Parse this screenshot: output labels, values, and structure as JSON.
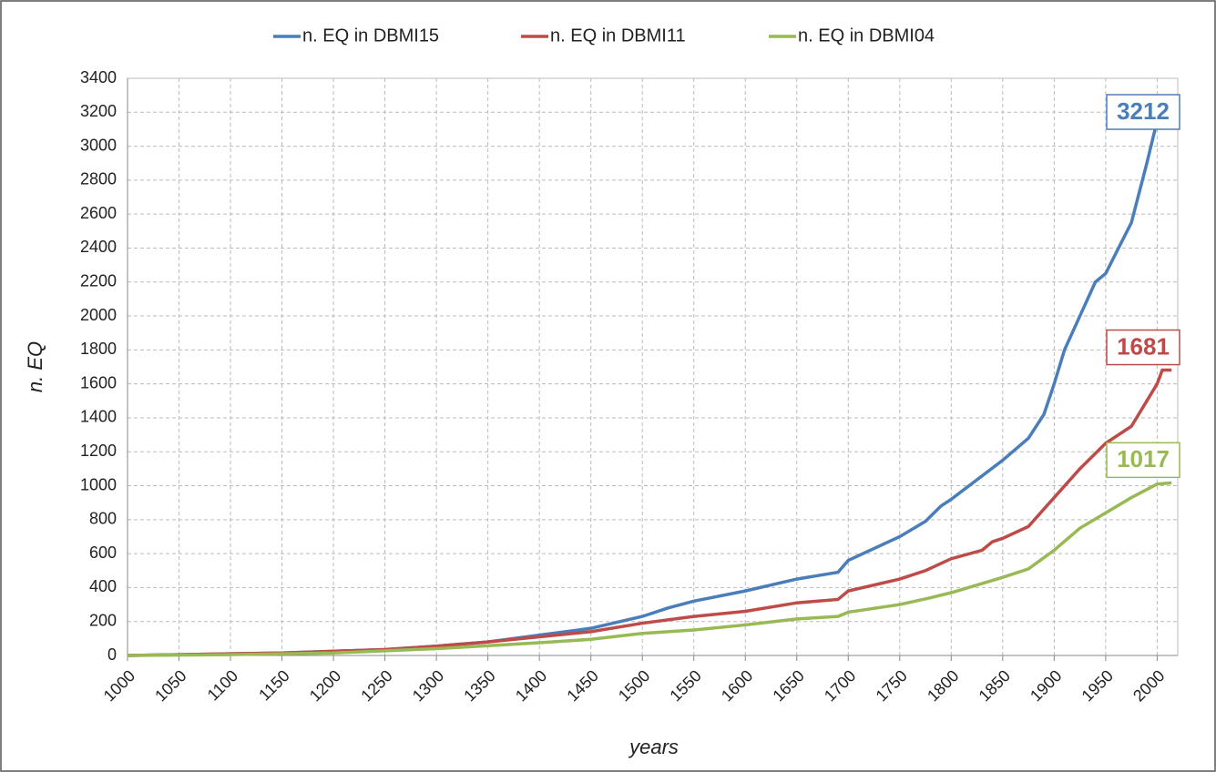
{
  "chart_data": {
    "type": "line",
    "xlabel": "years",
    "ylabel": "n. EQ",
    "xlim": [
      1000,
      2020
    ],
    "ylim": [
      0,
      3400
    ],
    "xticks": [
      1000,
      1050,
      1100,
      1150,
      1200,
      1250,
      1300,
      1350,
      1400,
      1450,
      1500,
      1550,
      1600,
      1650,
      1700,
      1750,
      1800,
      1850,
      1900,
      1950,
      2000
    ],
    "yticks": [
      0,
      200,
      400,
      600,
      800,
      1000,
      1200,
      1400,
      1600,
      1800,
      2000,
      2200,
      2400,
      2600,
      2800,
      3000,
      3200,
      3400
    ],
    "grid": true,
    "legend": "top",
    "series": [
      {
        "name": "n. EQ in DBMI15",
        "color": "#4a7ebb",
        "x": [
          1000,
          1050,
          1100,
          1150,
          1200,
          1250,
          1300,
          1350,
          1400,
          1450,
          1500,
          1525,
          1550,
          1600,
          1650,
          1690,
          1700,
          1750,
          1775,
          1790,
          1800,
          1850,
          1875,
          1890,
          1900,
          1910,
          1925,
          1940,
          1950,
          1975,
          1990,
          2000,
          2014
        ],
        "values": [
          0,
          5,
          10,
          15,
          25,
          35,
          55,
          80,
          120,
          160,
          230,
          280,
          320,
          380,
          450,
          490,
          560,
          700,
          790,
          880,
          920,
          1150,
          1280,
          1420,
          1600,
          1800,
          2000,
          2200,
          2250,
          2550,
          2900,
          3150,
          3212
        ]
      },
      {
        "name": "n. EQ in DBMI11",
        "color": "#be4b48",
        "x": [
          1000,
          1050,
          1100,
          1150,
          1200,
          1250,
          1300,
          1350,
          1400,
          1450,
          1500,
          1550,
          1600,
          1650,
          1690,
          1700,
          1750,
          1775,
          1800,
          1830,
          1840,
          1850,
          1875,
          1900,
          1925,
          1950,
          1975,
          1990,
          2000,
          2005,
          2014
        ],
        "values": [
          0,
          5,
          10,
          15,
          25,
          35,
          55,
          80,
          110,
          140,
          190,
          230,
          260,
          310,
          330,
          380,
          450,
          500,
          570,
          620,
          670,
          690,
          760,
          930,
          1100,
          1250,
          1350,
          1500,
          1600,
          1681,
          1681
        ]
      },
      {
        "name": "n. EQ in DBMI04",
        "color": "#98b954",
        "x": [
          1000,
          1100,
          1200,
          1300,
          1400,
          1450,
          1500,
          1550,
          1600,
          1650,
          1690,
          1700,
          1750,
          1780,
          1800,
          1850,
          1875,
          1900,
          1925,
          1950,
          1975,
          2000,
          2014
        ],
        "values": [
          0,
          5,
          15,
          40,
          75,
          95,
          130,
          150,
          180,
          215,
          230,
          255,
          300,
          340,
          370,
          460,
          510,
          620,
          750,
          840,
          930,
          1010,
          1017
        ]
      }
    ],
    "annotations": [
      "3212",
      "1681",
      "1017"
    ]
  }
}
